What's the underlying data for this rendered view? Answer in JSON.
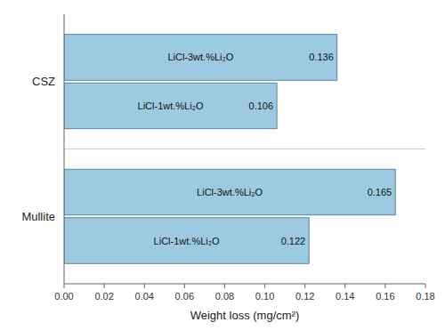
{
  "chart_data": {
    "type": "bar",
    "orientation": "horizontal",
    "categories": [
      "CSZ",
      "Mullite"
    ],
    "series": [
      {
        "name": "LiCl-3wt.%Li₂O",
        "values": [
          0.136,
          0.165
        ]
      },
      {
        "name": "LiCl-1wt.%Li₂O",
        "values": [
          0.106,
          0.122
        ]
      }
    ],
    "color": "#9ecae1",
    "xlabel": "Weight loss (mg/cm²)",
    "xlim": [
      0.0,
      0.18
    ],
    "xticks": [
      {
        "value": 0,
        "label": "0.00"
      },
      0.02,
      0.04,
      0.06,
      0.08,
      {
        "value": 0.1,
        "label": "0.10"
      },
      0.12,
      0.14,
      0.16,
      0.18
    ],
    "grid": false,
    "data_labels": true
  }
}
